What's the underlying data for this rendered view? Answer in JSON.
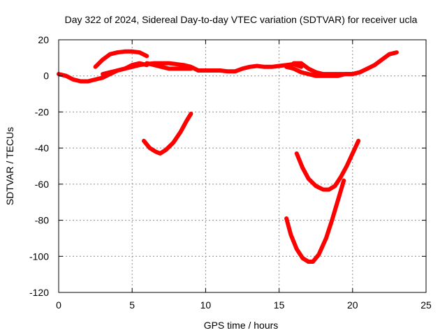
{
  "chart_data": {
    "type": "line",
    "title": "Day 322 of 2024, Sidereal Day-to-day VTEC variation (SDTVAR) for receiver ucla",
    "xlabel": "GPS time / hours",
    "ylabel": "SDTVAR / TECUs",
    "xlim": [
      0,
      25
    ],
    "ylim": [
      -120,
      20
    ],
    "xticks": [
      0,
      5,
      10,
      15,
      20,
      25
    ],
    "yticks": [
      -120,
      -100,
      -80,
      -60,
      -40,
      -20,
      0,
      20
    ],
    "xtick_labels": [
      "0",
      "5",
      "10",
      "15",
      "20",
      "25"
    ],
    "ytick_labels": [
      "-120",
      "-100",
      "-80",
      "-60",
      "-40",
      "-20",
      "0",
      "20"
    ],
    "grid": true,
    "legend": "none",
    "color": "#ff0000",
    "series": [
      {
        "x": [
          0,
          0.5,
          1,
          1.5,
          2,
          2.5,
          3,
          3.5,
          4,
          4.5,
          5,
          5.5,
          6
        ],
        "y": [
          1,
          0,
          -2,
          -3,
          -3,
          -2,
          -1,
          1,
          3,
          4,
          6,
          7,
          6
        ]
      },
      {
        "x": [
          2.5,
          3,
          3.5,
          4,
          4.5,
          5,
          5.5,
          6
        ],
        "y": [
          5,
          9,
          12,
          13,
          13.5,
          13.5,
          13,
          11
        ]
      },
      {
        "x": [
          3,
          3.5,
          4,
          4.5,
          5,
          5.5,
          6,
          6.5,
          7,
          7.5,
          8,
          8.5,
          9,
          9.5,
          10,
          10.5,
          11,
          11.5,
          12,
          12.5,
          13,
          13.5,
          14,
          14.5,
          15,
          15.5,
          16,
          16.5
        ],
        "y": [
          1,
          2,
          3,
          4,
          5,
          6,
          6.5,
          7,
          7,
          7,
          6.5,
          6,
          5,
          3,
          3,
          3,
          3,
          2.5,
          2.5,
          4,
          5,
          5.5,
          5,
          5,
          5.5,
          6,
          6.5,
          5
        ]
      },
      {
        "x": [
          6,
          6.5,
          7,
          7.5,
          8,
          8.5,
          9
        ],
        "y": [
          7,
          6,
          5,
          4,
          4,
          4,
          4
        ]
      },
      {
        "x": [
          15.5,
          16,
          16.5,
          17,
          17.5,
          18,
          18.5,
          19,
          19.5,
          20,
          20.5
        ],
        "y": [
          5,
          4,
          2,
          1,
          0,
          0,
          0,
          0,
          1,
          1,
          2
        ]
      },
      {
        "x": [
          16,
          16.5,
          17,
          17.5,
          18,
          18.5,
          19,
          19.5,
          20,
          20.5,
          21,
          21.5,
          22,
          22.5,
          23
        ],
        "y": [
          7,
          7,
          4,
          2,
          1,
          1,
          1,
          1,
          1,
          2,
          4,
          6,
          9,
          12,
          13
        ]
      },
      {
        "x": [
          5.8,
          6.2,
          6.6,
          6.9,
          7.3,
          7.8,
          8.3,
          8.7,
          9
        ],
        "y": [
          -36,
          -40,
          -42,
          -43,
          -41,
          -37,
          -31,
          -25,
          -21
        ]
      },
      {
        "x": [
          16.2,
          16.6,
          17,
          17.5,
          18,
          18.4,
          18.8,
          19.2,
          19.6,
          20,
          20.4
        ],
        "y": [
          -43,
          -51,
          -57,
          -61,
          -63,
          -63,
          -61,
          -56,
          -50,
          -43,
          -36
        ]
      },
      {
        "x": [
          15.5,
          15.8,
          16.2,
          16.6,
          17,
          17.3,
          17.7,
          18.2,
          18.6,
          19,
          19.4
        ],
        "y": [
          -79,
          -88,
          -96,
          -101,
          -103,
          -103,
          -99,
          -90,
          -80,
          -69,
          -58
        ]
      }
    ]
  }
}
